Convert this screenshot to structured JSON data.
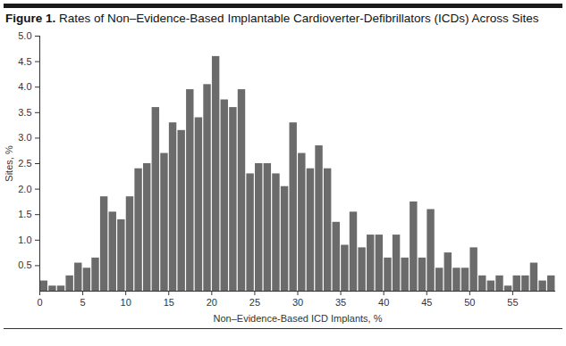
{
  "chart_data": {
    "type": "histogram",
    "title": "Figure 1. Rates of Non–Evidence-Based Implantable Cardioverter-Defibrillators (ICDs) Across Sites",
    "x_label": "Non–Evidence-Based ICD Implants, %",
    "y_label": "Sites, %",
    "bins": [
      0,
      1,
      2,
      3,
      4,
      5,
      6,
      7,
      8,
      9,
      10,
      11,
      12,
      13,
      14,
      15,
      16,
      17,
      18,
      19,
      20,
      21,
      22,
      23,
      24,
      25,
      26,
      27,
      28,
      29,
      30,
      31,
      32,
      33,
      34,
      35,
      36,
      37,
      38,
      39,
      40,
      41,
      42,
      43,
      44,
      45,
      46,
      47,
      48,
      49,
      50,
      51,
      52,
      53,
      54,
      55,
      56,
      57,
      58,
      59,
      60
    ],
    "values": [
      0.2,
      0.1,
      0.1,
      0.3,
      0.55,
      0.45,
      0.65,
      1.85,
      1.55,
      1.4,
      1.85,
      2.4,
      2.5,
      3.6,
      2.7,
      3.3,
      3.15,
      3.95,
      3.4,
      4.05,
      4.6,
      3.75,
      3.6,
      3.95,
      2.3,
      2.5,
      2.5,
      2.3,
      2.05,
      3.3,
      2.7,
      2.4,
      2.85,
      2.4,
      1.35,
      0.9,
      1.55,
      0.85,
      1.1,
      1.1,
      0.65,
      1.1,
      0.65,
      1.75,
      0.65,
      1.6,
      0.45,
      0.75,
      0.45,
      0.45,
      0.85,
      0.3,
      0.2,
      0.3,
      0.1,
      0.3,
      0.3,
      0.55,
      0.2,
      0.3
    ],
    "color": "#6b6b6b",
    "xlim": [
      0,
      60
    ],
    "xticks": [
      0,
      5,
      10,
      15,
      20,
      25,
      30,
      35,
      40,
      45,
      50,
      55
    ],
    "ylim": [
      0,
      5
    ],
    "yticks": [
      0.5,
      {
        "value": 1,
        "label": "1.0"
      },
      1.5,
      {
        "value": 2,
        "label": "2.0"
      },
      2.5,
      {
        "value": 3,
        "label": "3.0"
      },
      3.5,
      {
        "value": 4,
        "label": "4.0"
      },
      4.5,
      {
        "value": 5,
        "label": "5.0"
      }
    ],
    "grid": false
  }
}
